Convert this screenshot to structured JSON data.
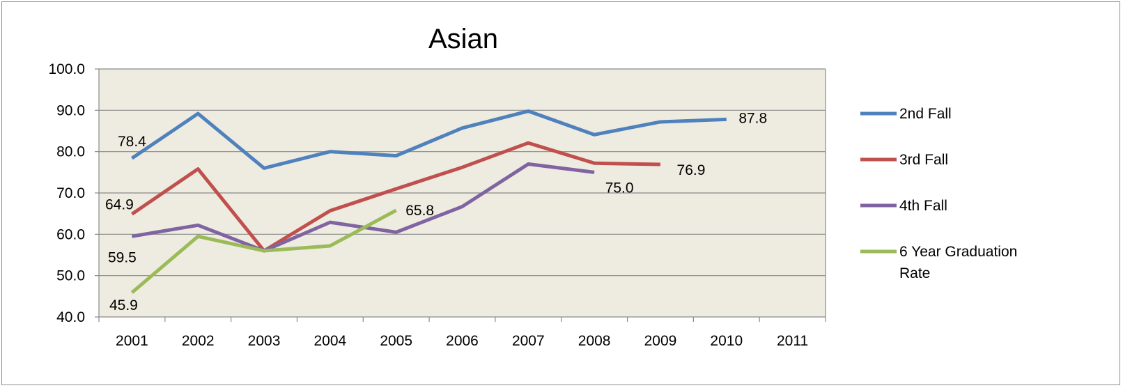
{
  "chart_data": {
    "type": "line",
    "title": "Asian",
    "xlabel": "",
    "ylabel": "",
    "categories": [
      "2001",
      "2002",
      "2003",
      "2004",
      "2005",
      "2006",
      "2007",
      "2008",
      "2009",
      "2010",
      "2011"
    ],
    "ylim": [
      40.0,
      100.0
    ],
    "yticks": [
      "40.0",
      "50.0",
      "60.0",
      "70.0",
      "80.0",
      "90.0",
      "100.0"
    ],
    "grid": true,
    "legend_position": "right",
    "plot_background": "#eeebe0",
    "series": [
      {
        "name": "2nd Fall",
        "color": "#4f81bd",
        "values": [
          78.4,
          89.2,
          76.0,
          80.0,
          79.0,
          85.7,
          89.8,
          84.1,
          87.2,
          87.8,
          null
        ]
      },
      {
        "name": "3rd Fall",
        "color": "#c0504d",
        "values": [
          64.9,
          75.8,
          56.0,
          65.7,
          71.0,
          76.2,
          82.1,
          77.2,
          76.9,
          null,
          null
        ]
      },
      {
        "name": "4th Fall",
        "color": "#8064a2",
        "values": [
          59.5,
          62.2,
          56.0,
          62.9,
          60.5,
          66.7,
          77.0,
          75.0,
          null,
          null,
          null
        ]
      },
      {
        "name": "6 Year Graduation Rate",
        "color": "#9bbb59",
        "values": [
          45.9,
          59.5,
          56.0,
          57.2,
          65.8,
          null,
          null,
          null,
          null,
          null,
          null
        ]
      }
    ],
    "data_labels": [
      {
        "series": 0,
        "index": 0,
        "text": "78.4"
      },
      {
        "series": 0,
        "index": 9,
        "text": "87.8"
      },
      {
        "series": 1,
        "index": 0,
        "text": "64.9"
      },
      {
        "series": 1,
        "index": 8,
        "text": "76.9"
      },
      {
        "series": 2,
        "index": 0,
        "text": "59.5"
      },
      {
        "series": 2,
        "index": 7,
        "text": "75.0"
      },
      {
        "series": 3,
        "index": 0,
        "text": "45.9"
      },
      {
        "series": 3,
        "index": 4,
        "text": "65.8"
      }
    ]
  }
}
